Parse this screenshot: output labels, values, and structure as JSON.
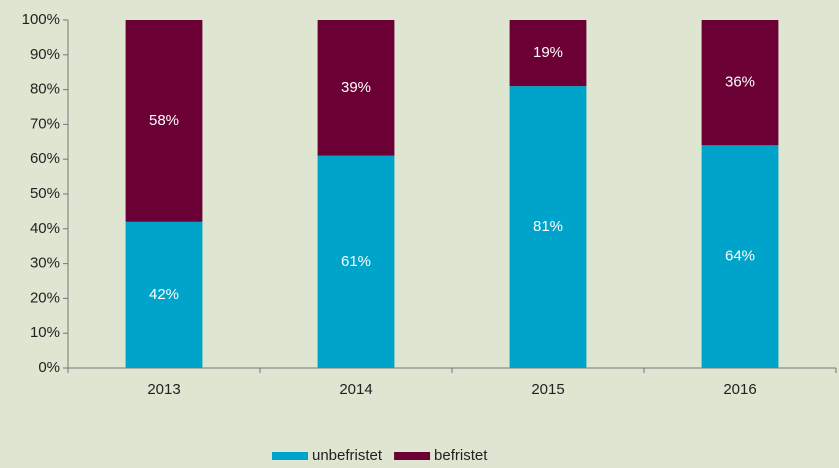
{
  "chart_data": {
    "type": "stacked_bar",
    "categories": [
      "2013",
      "2014",
      "2015",
      "2016"
    ],
    "series": [
      {
        "name": "unbefristet",
        "color": "#00a3c9",
        "values": [
          42,
          61,
          81,
          64
        ],
        "value_labels": [
          "42%",
          "61%",
          "81%",
          "64%"
        ]
      },
      {
        "name": "befristet",
        "color": "#6b0035",
        "values": [
          58,
          39,
          19,
          36
        ],
        "value_labels": [
          "58%",
          "39%",
          "19%",
          "36%"
        ]
      }
    ],
    "ylim": [
      0,
      100
    ],
    "yticks": [
      {
        "value": 0,
        "label": "0%"
      },
      {
        "value": 10,
        "label": "10%"
      },
      {
        "value": 20,
        "label": "20%"
      },
      {
        "value": 30,
        "label": "30%"
      },
      {
        "value": 40,
        "label": "40%"
      },
      {
        "value": 50,
        "label": "50%"
      },
      {
        "value": 60,
        "label": "60%"
      },
      {
        "value": 70,
        "label": "70%"
      },
      {
        "value": 80,
        "label": "80%"
      },
      {
        "value": 90,
        "label": "90%"
      },
      {
        "value": 100,
        "label": "100%"
      }
    ],
    "grid": false,
    "legend": "bottom"
  }
}
